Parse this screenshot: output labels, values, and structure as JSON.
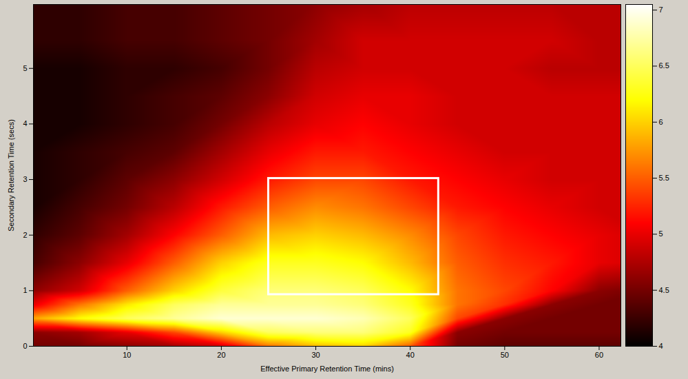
{
  "chart_data": {
    "type": "heatmap",
    "xlabel": "Effective Primary Retention Time (mins)",
    "ylabel": "Secondary Retention Time (secs)",
    "xlim": [
      0.1,
      62.3
    ],
    "xticks": [
      10,
      20,
      30,
      40,
      50,
      60
    ],
    "ylim": [
      0,
      6.15
    ],
    "yticks": [
      0,
      1,
      2,
      3,
      4,
      5
    ],
    "x": [
      0,
      5,
      10,
      15,
      20,
      25,
      30,
      35,
      40,
      45,
      50,
      55,
      60,
      65
    ],
    "y": [
      0,
      0.25,
      0.5,
      0.75,
      1,
      1.5,
      2,
      2.5,
      3,
      3.5,
      4,
      4.5,
      5,
      5.5,
      6.2
    ],
    "values": [
      [
        4.5,
        4.5,
        4.6,
        4.7,
        4.9,
        5.6,
        5.9,
        6.0,
        5.5,
        4.5,
        4.4,
        4.4,
        4.4,
        4.4
      ],
      [
        4.6,
        4.7,
        5.0,
        5.4,
        6.0,
        6.5,
        6.6,
        6.6,
        6.3,
        4.6,
        4.5,
        4.5,
        4.5,
        4.5
      ],
      [
        5.8,
        6.2,
        6.5,
        6.7,
        6.9,
        6.9,
        6.9,
        6.8,
        6.5,
        5.4,
        4.6,
        4.5,
        4.5,
        4.5
      ],
      [
        5.0,
        5.6,
        6.1,
        6.5,
        6.7,
        6.7,
        6.7,
        6.6,
        6.3,
        5.6,
        5.3,
        4.6,
        4.5,
        4.5
      ],
      [
        4.6,
        4.9,
        5.5,
        6.0,
        6.4,
        6.6,
        6.6,
        6.5,
        6.2,
        5.6,
        5.4,
        5.1,
        4.6,
        4.5
      ],
      [
        4.3,
        4.6,
        5.0,
        5.5,
        6.0,
        6.3,
        6.3,
        6.2,
        5.9,
        5.5,
        5.3,
        5.2,
        5.0,
        4.9
      ],
      [
        4.2,
        4.4,
        4.7,
        5.1,
        5.5,
        5.9,
        6.0,
        5.9,
        5.7,
        5.4,
        5.2,
        5.1,
        5.0,
        4.9
      ],
      [
        4.1,
        4.3,
        4.5,
        4.8,
        5.2,
        5.5,
        5.7,
        5.6,
        5.4,
        5.2,
        5.1,
        5.0,
        4.9,
        4.9
      ],
      [
        4.1,
        4.2,
        4.4,
        4.6,
        4.9,
        5.2,
        5.4,
        5.4,
        5.2,
        5.1,
        5.0,
        4.9,
        4.9,
        4.9
      ],
      [
        4.1,
        4.2,
        4.3,
        4.4,
        4.7,
        5.0,
        5.2,
        5.2,
        5.1,
        5.0,
        4.9,
        4.9,
        4.9,
        4.9
      ],
      [
        4.1,
        4.1,
        4.2,
        4.3,
        4.5,
        4.8,
        5.0,
        5.1,
        5.0,
        4.9,
        4.9,
        4.9,
        4.9,
        4.9
      ],
      [
        4.1,
        4.1,
        4.2,
        4.3,
        4.4,
        4.6,
        4.9,
        5.0,
        5.0,
        4.9,
        4.9,
        4.9,
        4.9,
        4.9
      ],
      [
        4.1,
        4.1,
        4.2,
        4.2,
        4.3,
        4.5,
        4.8,
        4.9,
        4.9,
        4.9,
        4.9,
        4.8,
        4.8,
        4.8
      ],
      [
        4.2,
        4.2,
        4.3,
        4.3,
        4.4,
        4.5,
        4.7,
        4.9,
        4.9,
        4.9,
        4.9,
        4.9,
        4.8,
        4.8
      ],
      [
        4.2,
        4.2,
        4.3,
        4.3,
        4.4,
        4.5,
        4.6,
        4.7,
        4.8,
        4.8,
        4.8,
        4.8,
        4.8,
        4.8
      ]
    ],
    "colorbar": {
      "range": [
        4,
        7.05
      ],
      "ticks": [
        4,
        4.5,
        5,
        5.5,
        6,
        6.5,
        7
      ]
    },
    "box": {
      "x": [
        25,
        43
      ],
      "y": [
        0.93,
        3.02
      ]
    }
  }
}
